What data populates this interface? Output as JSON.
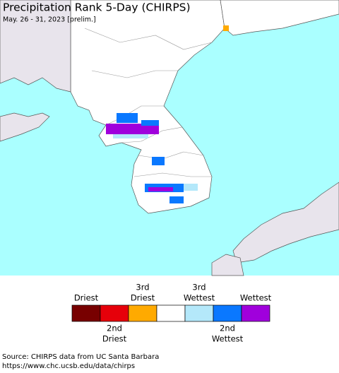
{
  "header": {
    "title": "Precipitation Rank 5-Day (CHIRPS)",
    "subtitle": "May. 26 - 31, 2023 [prelim.]"
  },
  "legend": {
    "items": [
      {
        "lines": [
          "Driest"
        ],
        "color": "#780000"
      },
      {
        "lines": [
          "2nd",
          "Driest"
        ],
        "color": "#e6000a"
      },
      {
        "lines": [
          "3rd",
          "Driest"
        ],
        "color": "#ffaa00"
      },
      {
        "lines": [],
        "color": "#ffffff"
      },
      {
        "lines": [
          "3rd",
          "Wettest"
        ],
        "color": "#b4e8fa"
      },
      {
        "lines": [
          "2nd",
          "Wettest"
        ],
        "color": "#0a78ff"
      },
      {
        "lines": [
          "Wettest"
        ],
        "color": "#a000dc"
      }
    ]
  },
  "footer": {
    "lines": [
      "Source: CHIRPS data from UC Santa Barbara",
      "https://www.chc.ucsb.edu/data/chirps"
    ]
  }
}
